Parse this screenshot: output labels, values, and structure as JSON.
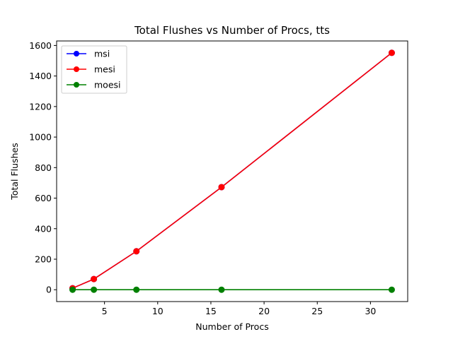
{
  "chart_data": {
    "type": "line",
    "title": "Total Flushes vs Number of Procs, tts",
    "xlabel": "Number of Procs",
    "ylabel": "Total Flushes",
    "x": [
      2,
      4,
      8,
      16,
      32
    ],
    "series": [
      {
        "name": "msi",
        "color": "#0000ff",
        "values": [
          10,
          70,
          252,
          672,
          1552
        ]
      },
      {
        "name": "mesi",
        "color": "#ff0000",
        "values": [
          10,
          70,
          252,
          672,
          1552
        ]
      },
      {
        "name": "moesi",
        "color": "#008000",
        "values": [
          0,
          0,
          0,
          0,
          0
        ]
      }
    ],
    "xlim": [
      0.5,
      33.5
    ],
    "ylim": [
      -77.6,
      1629.6
    ],
    "xticks": [
      5,
      10,
      15,
      20,
      25,
      30
    ],
    "yticks": [
      0,
      200,
      400,
      600,
      800,
      1000,
      1200,
      1400,
      1600
    ],
    "grid": false,
    "legend_position": "top-left",
    "marker": "circle"
  }
}
